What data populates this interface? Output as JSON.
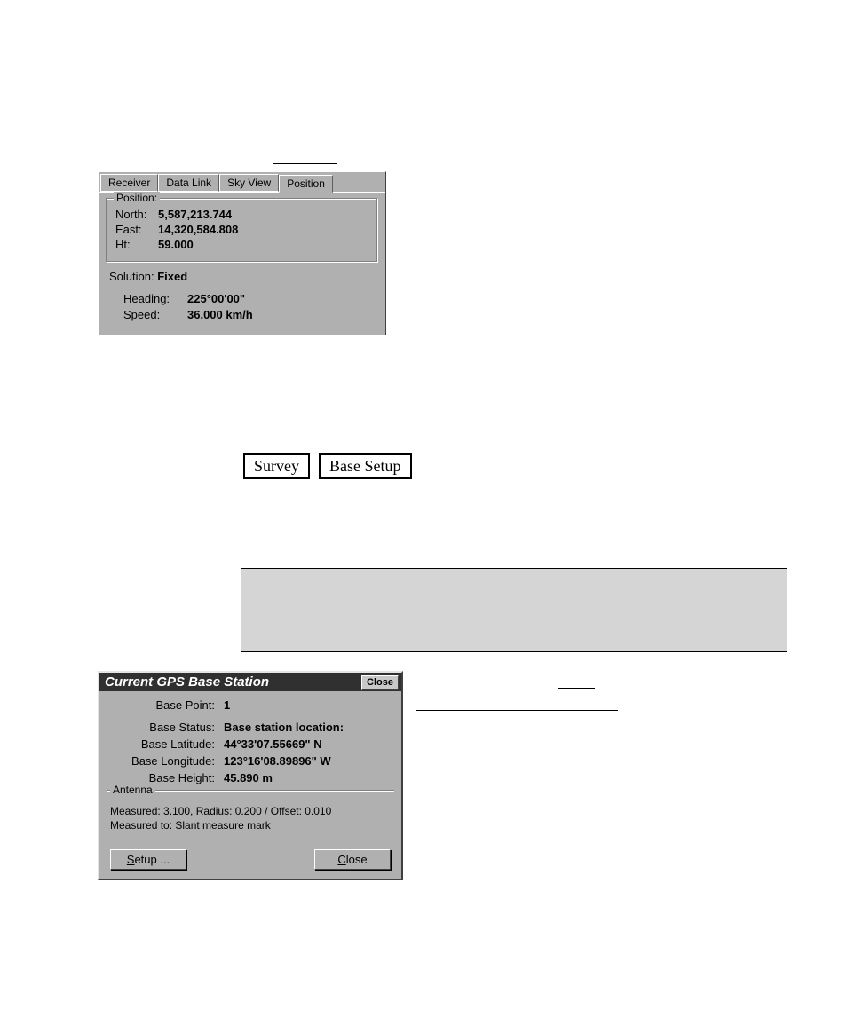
{
  "position_panel": {
    "tabs": [
      "Receiver",
      "Data Link",
      "Sky View",
      "Position"
    ],
    "active_tab_index": 3,
    "colors": {
      "panel_bg": "#b0b0b0",
      "border_light": "#ffffff",
      "border_dark": "#404040",
      "text": "#000000"
    },
    "fieldset_legend": "Position:",
    "north_label": "North:",
    "north_value": "5,587,213.744",
    "east_label": "East:",
    "east_value": "14,320,584.808",
    "ht_label": "Ht:",
    "ht_value": "59.000",
    "solution_label": "Solution:",
    "solution_value": "Fixed",
    "heading_label": "Heading:",
    "heading_value": "225°00'00\"",
    "speed_label": "Speed:",
    "speed_value": "36.000  km/h"
  },
  "menu_path": {
    "survey_label": "Survey",
    "base_setup_label": "Base Setup"
  },
  "base_dialog": {
    "title": "Current GPS Base Station",
    "close_label": "Close",
    "titlebar_bg": "#303030",
    "titlebar_fg": "#ffffff",
    "base_point_label": "Base Point:",
    "base_point_value": "1",
    "base_status_label": "Base Status:",
    "base_status_value": "Base station location:",
    "base_lat_label": "Base Latitude:",
    "base_lat_value": "44°33'07.55669\" N",
    "base_lon_label": "Base Longitude:",
    "base_lon_value": "123°16'08.89896\" W",
    "base_ht_label": "Base Height:",
    "base_ht_value": "45.890 m",
    "antenna_legend": "Antenna",
    "antenna_line1": "Measured: 3.100, Radius: 0.200 / Offset: 0.010",
    "antenna_line2": "Measured to: Slant measure mark",
    "setup_label": "Setup ...",
    "close_btn_label": "Close",
    "setup_accel": "S",
    "close_accel": "C"
  }
}
